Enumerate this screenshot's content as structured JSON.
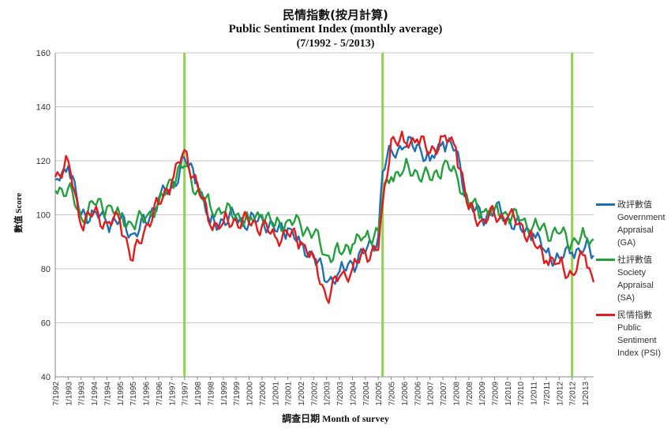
{
  "chart_data": {
    "type": "line",
    "title": "民情指數(按月計算)",
    "subtitle": "Public Sentiment Index (monthly average)",
    "period": "(7/1992 - 5/2013)",
    "xlabel": "調查日期  Month of survey",
    "ylabel": "數值 Score",
    "ylim": [
      40,
      160
    ],
    "yticks": [
      40,
      60,
      80,
      100,
      120,
      140,
      160
    ],
    "xlim": [
      "7/1992",
      "5/2013"
    ],
    "xticks": [
      "7/1992",
      "1/1993",
      "7/1993",
      "1/1994",
      "7/1994",
      "1/1995",
      "7/1995",
      "1/1996",
      "7/1996",
      "1/1997",
      "7/1997",
      "1/1998",
      "7/1998",
      "1/1999",
      "7/1999",
      "1/2000",
      "7/2000",
      "1/2001",
      "7/2001",
      "1/2002",
      "7/2002",
      "1/2003",
      "7/2003",
      "1/2004",
      "7/2004",
      "1/2005",
      "7/2005",
      "1/2006",
      "7/2006",
      "1/2007",
      "7/2007",
      "1/2008",
      "7/2008",
      "1/2009",
      "7/2009",
      "1/2010",
      "7/2010",
      "1/2011",
      "7/2011",
      "1/2012",
      "7/2012",
      "1/2013"
    ],
    "grid": "horizontal",
    "legend_position": "right",
    "vertical_markers": [
      "7/1997",
      "3/2005",
      "7/2012"
    ],
    "marker_color": "#92d050",
    "series": [
      {
        "name": "政評數值\nGovernment\nAppraisal\n(GA)",
        "color": "#1f6fb5",
        "points": [
          [
            "7/1992",
            113
          ],
          [
            "1/1993",
            118
          ],
          [
            "7/1993",
            100
          ],
          [
            "1/1994",
            101
          ],
          [
            "7/1994",
            97
          ],
          [
            "1/1995",
            98
          ],
          [
            "7/1995",
            93
          ],
          [
            "1/1996",
            97
          ],
          [
            "7/1996",
            106
          ],
          [
            "1/1997",
            110
          ],
          [
            "7/1997",
            121
          ],
          [
            "1/1998",
            112
          ],
          [
            "7/1998",
            97
          ],
          [
            "1/1999",
            98
          ],
          [
            "7/1999",
            99
          ],
          [
            "1/2000",
            97
          ],
          [
            "7/2000",
            99
          ],
          [
            "1/2001",
            94
          ],
          [
            "7/2001",
            95
          ],
          [
            "1/2002",
            89
          ],
          [
            "7/2002",
            85
          ],
          [
            "1/2003",
            75
          ],
          [
            "7/2003",
            79
          ],
          [
            "1/2004",
            82
          ],
          [
            "7/2004",
            86
          ],
          [
            "1/2005",
            92
          ],
          [
            "3/2005",
            116
          ],
          [
            "7/2005",
            124
          ],
          [
            "1/2006",
            125
          ],
          [
            "7/2006",
            126
          ],
          [
            "1/2007",
            120
          ],
          [
            "7/2007",
            127
          ],
          [
            "1/2008",
            124
          ],
          [
            "7/2008",
            104
          ],
          [
            "1/2009",
            99
          ],
          [
            "7/2009",
            102
          ],
          [
            "1/2010",
            99
          ],
          [
            "7/2010",
            95
          ],
          [
            "1/2011",
            93
          ],
          [
            "7/2011",
            86
          ],
          [
            "1/2012",
            84
          ],
          [
            "7/2012",
            86
          ],
          [
            "1/2013",
            88
          ],
          [
            "5/2013",
            85
          ]
        ]
      },
      {
        "name": "社評數值\nSociety\nAppraisal\n(SA)",
        "color": "#23a03c",
        "points": [
          [
            "7/1992",
            109
          ],
          [
            "1/1993",
            110
          ],
          [
            "7/1993",
            99
          ],
          [
            "1/1994",
            104
          ],
          [
            "7/1994",
            103
          ],
          [
            "1/1995",
            100
          ],
          [
            "7/1995",
            96
          ],
          [
            "1/1996",
            99
          ],
          [
            "7/1996",
            104
          ],
          [
            "1/1997",
            113
          ],
          [
            "7/1997",
            118
          ],
          [
            "1/1998",
            109
          ],
          [
            "7/1998",
            103
          ],
          [
            "1/1999",
            101
          ],
          [
            "7/1999",
            100
          ],
          [
            "1/2000",
            98
          ],
          [
            "7/2000",
            100
          ],
          [
            "1/2001",
            96
          ],
          [
            "7/2001",
            98
          ],
          [
            "1/2002",
            96
          ],
          [
            "7/2002",
            93
          ],
          [
            "1/2003",
            85
          ],
          [
            "7/2003",
            86
          ],
          [
            "1/2004",
            89
          ],
          [
            "7/2004",
            92
          ],
          [
            "1/2005",
            94
          ],
          [
            "3/2005",
            106
          ],
          [
            "7/2005",
            114
          ],
          [
            "1/2006",
            117
          ],
          [
            "7/2006",
            116
          ],
          [
            "1/2007",
            113
          ],
          [
            "7/2007",
            118
          ],
          [
            "1/2008",
            116
          ],
          [
            "7/2008",
            104
          ],
          [
            "1/2009",
            101
          ],
          [
            "7/2009",
            102
          ],
          [
            "1/2010",
            100
          ],
          [
            "7/2010",
            98
          ],
          [
            "1/2011",
            96
          ],
          [
            "7/2011",
            94
          ],
          [
            "1/2012",
            93
          ],
          [
            "7/2012",
            90
          ],
          [
            "1/2013",
            92
          ],
          [
            "5/2013",
            91
          ]
        ]
      },
      {
        "name": "民情指數\nPublic\nSentiment\nIndex (PSI)",
        "color": "#e31b1b",
        "points": [
          [
            "7/1992",
            114
          ],
          [
            "1/1993",
            120
          ],
          [
            "7/1993",
            96
          ],
          [
            "1/1994",
            101
          ],
          [
            "7/1994",
            97
          ],
          [
            "1/1995",
            98
          ],
          [
            "7/1995",
            83
          ],
          [
            "1/1996",
            96
          ],
          [
            "7/1996",
            104
          ],
          [
            "1/1997",
            112
          ],
          [
            "7/1997",
            124
          ],
          [
            "1/1998",
            111
          ],
          [
            "7/1998",
            96
          ],
          [
            "1/1999",
            97
          ],
          [
            "7/1999",
            98
          ],
          [
            "1/2000",
            97
          ],
          [
            "7/2000",
            96
          ],
          [
            "1/2001",
            92
          ],
          [
            "7/2001",
            93
          ],
          [
            "1/2002",
            90
          ],
          [
            "7/2002",
            84
          ],
          [
            "1/2003",
            69
          ],
          [
            "7/2003",
            77
          ],
          [
            "1/2004",
            80
          ],
          [
            "7/2004",
            86
          ],
          [
            "1/2005",
            87
          ],
          [
            "3/2005",
            104
          ],
          [
            "7/2005",
            128
          ],
          [
            "1/2006",
            127
          ],
          [
            "7/2006",
            128
          ],
          [
            "1/2007",
            123
          ],
          [
            "7/2007",
            129
          ],
          [
            "1/2008",
            125
          ],
          [
            "7/2008",
            102
          ],
          [
            "1/2009",
            98
          ],
          [
            "7/2009",
            100
          ],
          [
            "1/2010",
            99
          ],
          [
            "7/2010",
            97
          ],
          [
            "1/2011",
            90
          ],
          [
            "7/2011",
            83
          ],
          [
            "1/2012",
            82
          ],
          [
            "7/2012",
            78
          ],
          [
            "1/2013",
            85
          ],
          [
            "5/2013",
            75
          ]
        ]
      }
    ]
  }
}
